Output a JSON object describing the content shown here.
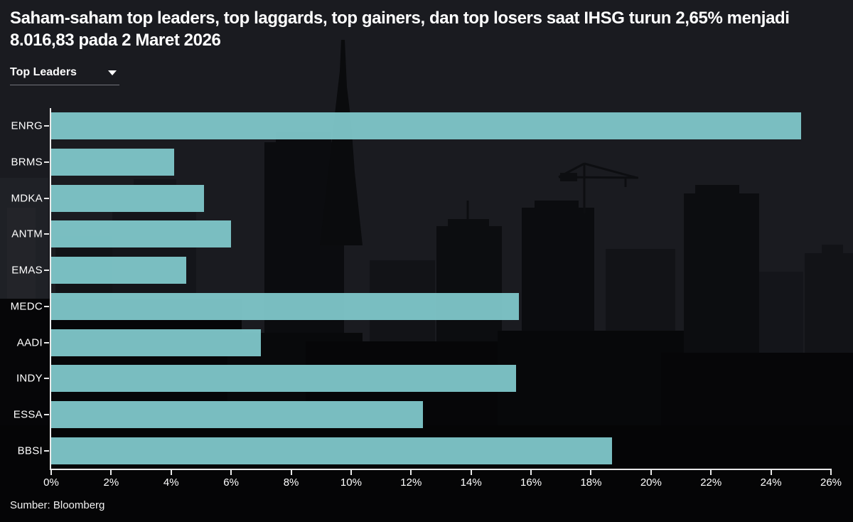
{
  "title": "Saham-saham top leaders, top laggards, top gainers, dan top losers saat IHSG turun 2,65% menjadi 8.016,83 pada 2 Maret 2026",
  "dropdown": {
    "selected": "Top Leaders"
  },
  "source": "Sumber: Bloomberg",
  "colors": {
    "bar": "#7fc7ca",
    "background_sky": "#1a1b20",
    "background_foreground": "#050506",
    "axis": "#e9e9e9",
    "text": "#ffffff"
  },
  "chart_data": {
    "type": "bar",
    "orientation": "horizontal",
    "title": "Top Leaders",
    "categories": [
      "ENRG",
      "BRMS",
      "MDKA",
      "ANTM",
      "EMAS",
      "MEDC",
      "AADI",
      "INDY",
      "ESSA",
      "BBSI"
    ],
    "values": [
      25.0,
      4.1,
      5.1,
      6.0,
      4.5,
      15.6,
      7.0,
      15.5,
      12.4,
      18.7
    ],
    "unit": "%",
    "xlabel": "",
    "ylabel": "",
    "xlim": [
      0,
      26
    ],
    "x_tick_step": 2,
    "x_tick_labels": [
      "0%",
      "2%",
      "4%",
      "6%",
      "8%",
      "10%",
      "12%",
      "14%",
      "16%",
      "18%",
      "20%",
      "22%",
      "24%",
      "26%"
    ],
    "grid": false,
    "legend": false
  }
}
